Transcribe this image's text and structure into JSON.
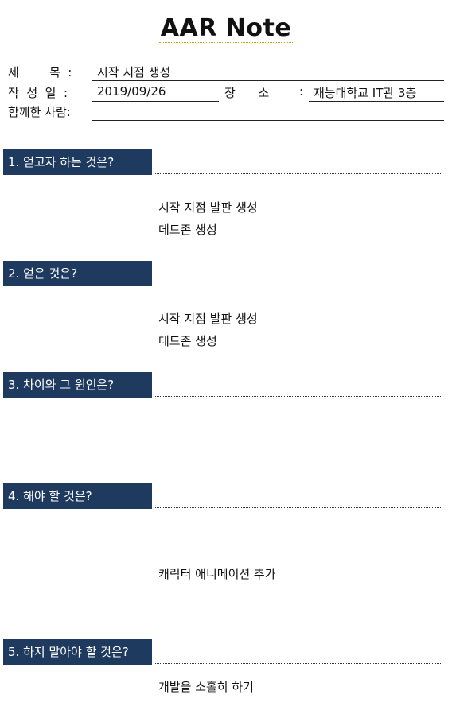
{
  "title": "AAR  Note",
  "info": {
    "subject_label": "제        목  :",
    "subject_value": "시작 지점 생성",
    "author_label": "작  성  일  :",
    "date_value": "2019/09/26",
    "place_label": "장      소",
    "place_colon": ":",
    "place_value": "재능대학교 IT관 3층",
    "with_label": "함께한 사람:",
    "with_value": ""
  },
  "sections": [
    {
      "header": "1. 얻고자 하는 것은?",
      "lines": [
        "시작 지점 발판 생성",
        "데드존 생성"
      ]
    },
    {
      "header": "2. 얻은 것은?",
      "lines": [
        "시작 지점 발판 생성",
        "데드존 생성"
      ]
    },
    {
      "header": "3. 차이와 그 원인은?",
      "lines": []
    },
    {
      "header": "4. 해야 할 것은?",
      "lines": [
        "캐릭터 애니메이션 추가"
      ]
    },
    {
      "header": "5. 하지 말아야 할 것은?",
      "lines": [
        "개발을 소홀히 하기"
      ]
    }
  ]
}
